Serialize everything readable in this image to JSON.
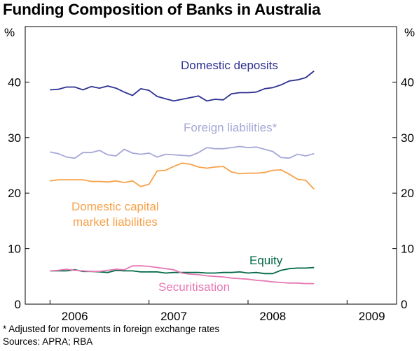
{
  "chart_data": {
    "type": "line",
    "title": "Funding Composition of Banks in Australia",
    "y_unit_left": "%",
    "y_unit_right": "%",
    "ylim": [
      0,
      50
    ],
    "yticks": [
      0,
      10,
      20,
      30,
      40
    ],
    "xlim": [
      2005.75,
      2009.5
    ],
    "xticks": [
      {
        "label": "2006",
        "at": 2006.25
      },
      {
        "label": "2007",
        "at": 2007.25
      },
      {
        "label": "2008",
        "at": 2008.25
      },
      {
        "label": "2009",
        "at": 2009.25
      }
    ],
    "grid": false,
    "x": [
      2006.0,
      2006.083,
      2006.167,
      2006.25,
      2006.333,
      2006.417,
      2006.5,
      2006.583,
      2006.667,
      2006.75,
      2006.833,
      2006.917,
      2007.0,
      2007.083,
      2007.167,
      2007.25,
      2007.333,
      2007.417,
      2007.5,
      2007.583,
      2007.667,
      2007.75,
      2007.833,
      2007.917,
      2008.0,
      2008.083,
      2008.167,
      2008.25,
      2008.333,
      2008.417,
      2008.5,
      2008.583,
      2008.667,
      2008.75,
      2008.833,
      2008.917,
      2009.0
    ],
    "series": [
      {
        "name": "Domestic deposits",
        "color": "#2e3192",
        "values": [
          38.6,
          38.7,
          39.1,
          39.1,
          38.6,
          39.2,
          38.9,
          39.3,
          38.9,
          38.2,
          37.6,
          38.8,
          38.5,
          37.4,
          37.0,
          36.6,
          36.9,
          37.2,
          37.5,
          36.6,
          36.9,
          36.8,
          37.9,
          38.1,
          38.1,
          38.2,
          38.8,
          39.0,
          39.5,
          40.2,
          40.4,
          40.8,
          42.0,
          null,
          null,
          null,
          null
        ]
      },
      {
        "name": "Foreign liabilities*",
        "color": "#a6a8d8",
        "values": [
          27.4,
          27.1,
          26.5,
          26.3,
          27.3,
          27.3,
          27.7,
          26.9,
          26.7,
          27.9,
          27.2,
          27.0,
          27.2,
          26.5,
          27.0,
          26.9,
          26.8,
          26.7,
          27.3,
          28.2,
          28.0,
          28.0,
          28.2,
          28.4,
          28.2,
          28.3,
          27.9,
          27.5,
          26.4,
          26.3,
          27.0,
          26.7,
          27.1,
          null,
          null,
          null,
          null
        ]
      },
      {
        "name": "Domestic capital market liabilities",
        "color": "#f7a14a",
        "values": [
          22.2,
          22.4,
          22.4,
          22.4,
          22.4,
          22.1,
          22.1,
          22.0,
          22.2,
          21.9,
          22.2,
          21.2,
          21.6,
          24.0,
          24.1,
          24.8,
          25.4,
          25.2,
          24.7,
          24.5,
          24.7,
          24.8,
          23.8,
          23.5,
          23.6,
          23.6,
          23.7,
          24.1,
          24.2,
          23.4,
          22.5,
          22.3,
          20.7,
          null,
          null,
          null,
          null
        ]
      },
      {
        "name": "Equity",
        "color": "#006747",
        "values": [
          6.0,
          6.0,
          6.0,
          6.2,
          5.9,
          5.9,
          5.8,
          5.7,
          6.1,
          6.0,
          6.0,
          5.8,
          5.8,
          5.8,
          5.6,
          5.7,
          5.7,
          5.7,
          5.7,
          5.6,
          5.6,
          5.7,
          5.7,
          5.8,
          5.6,
          5.7,
          5.5,
          5.5,
          6.1,
          6.4,
          6.5,
          6.5,
          6.6,
          null,
          null,
          null,
          null
        ]
      },
      {
        "name": "Securitisation",
        "color": "#e678b4",
        "values": [
          6.0,
          6.1,
          6.3,
          6.1,
          6.0,
          5.9,
          5.9,
          6.1,
          6.3,
          6.2,
          6.9,
          6.9,
          6.8,
          6.6,
          6.4,
          6.2,
          5.6,
          5.4,
          5.3,
          5.1,
          5.0,
          4.9,
          4.7,
          4.6,
          4.5,
          4.3,
          4.2,
          4.0,
          3.9,
          3.8,
          3.8,
          3.7,
          3.7,
          null,
          null,
          null,
          null
        ]
      }
    ],
    "footnotes": [
      "*    Adjusted for movements in foreign exchange rates",
      "Sources: APRA; RBA"
    ]
  }
}
